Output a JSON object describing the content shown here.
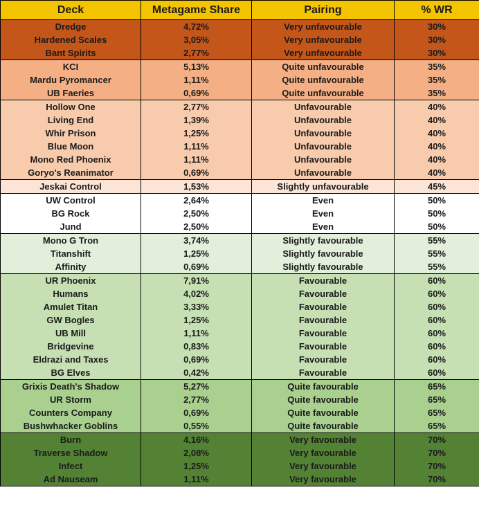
{
  "headers": [
    "Deck",
    "Metagame Share",
    "Pairing",
    "% WR"
  ],
  "groups": [
    {
      "color": "#c4561a",
      "rows": [
        [
          "Dredge",
          "4,72%",
          "Very unfavourable",
          "30%"
        ],
        [
          "Hardened Scales",
          "3,05%",
          "Very unfavourable",
          "30%"
        ],
        [
          "Bant Spirits",
          "2,77%",
          "Very unfavourable",
          "30%"
        ]
      ]
    },
    {
      "color": "#f4b084",
      "rows": [
        [
          "KCI",
          "5,13%",
          "Quite unfavourable",
          "35%"
        ],
        [
          "Mardu Pyromancer",
          "1,11%",
          "Quite unfavourable",
          "35%"
        ],
        [
          "UB Faeries",
          "0,69%",
          "Quite unfavourable",
          "35%"
        ]
      ]
    },
    {
      "color": "#f8cbad",
      "rows": [
        [
          "Hollow One",
          "2,77%",
          "Unfavourable",
          "40%"
        ],
        [
          "Living End",
          "1,39%",
          "Unfavourable",
          "40%"
        ],
        [
          "Whir Prison",
          "1,25%",
          "Unfavourable",
          "40%"
        ],
        [
          "Blue Moon",
          "1,11%",
          "Unfavourable",
          "40%"
        ],
        [
          "Mono Red Phoenix",
          "1,11%",
          "Unfavourable",
          "40%"
        ],
        [
          "Goryo's Reanimator",
          "0,69%",
          "Unfavourable",
          "40%"
        ]
      ]
    },
    {
      "color": "#fce4d6",
      "rows": [
        [
          "Jeskai Control",
          "1,53%",
          "Slightly unfavourable",
          "45%"
        ]
      ]
    },
    {
      "color": "#ffffff",
      "rows": [
        [
          "UW Control",
          "2,64%",
          "Even",
          "50%"
        ],
        [
          "BG Rock",
          "2,50%",
          "Even",
          "50%"
        ],
        [
          "Jund",
          "2,50%",
          "Even",
          "50%"
        ]
      ]
    },
    {
      "color": "#e2efda",
      "rows": [
        [
          "Mono G Tron",
          "3,74%",
          "Slightly favourable",
          "55%"
        ],
        [
          "Titanshift",
          "1,25%",
          "Slightly favourable",
          "55%"
        ],
        [
          "Affinity",
          "0,69%",
          "Slightly favourable",
          "55%"
        ]
      ]
    },
    {
      "color": "#c6e0b4",
      "rows": [
        [
          "UR Phoenix",
          "7,91%",
          "Favourable",
          "60%"
        ],
        [
          "Humans",
          "4,02%",
          "Favourable",
          "60%"
        ],
        [
          "Amulet Titan",
          "3,33%",
          "Favourable",
          "60%"
        ],
        [
          "GW Bogles",
          "1,25%",
          "Favourable",
          "60%"
        ],
        [
          "UB Mill",
          "1,11%",
          "Favourable",
          "60%"
        ],
        [
          "Bridgevine",
          "0,83%",
          "Favourable",
          "60%"
        ],
        [
          "Eldrazi and Taxes",
          "0,69%",
          "Favourable",
          "60%"
        ],
        [
          "BG Elves",
          "0,42%",
          "Favourable",
          "60%"
        ]
      ]
    },
    {
      "color": "#a9d08e",
      "rows": [
        [
          "Grixis Death's Shadow",
          "5,27%",
          "Quite favourable",
          "65%"
        ],
        [
          "UR Storm",
          "2,77%",
          "Quite favourable",
          "65%"
        ],
        [
          "Counters Company",
          "0,69%",
          "Quite favourable",
          "65%"
        ],
        [
          "Bushwhacker Goblins",
          "0,55%",
          "Quite favourable",
          "65%"
        ]
      ]
    },
    {
      "color": "#548235",
      "rows": [
        [
          "Burn",
          "4,16%",
          "Very favourable",
          "70%"
        ],
        [
          "Traverse Shadow",
          "2,08%",
          "Very favourable",
          "70%"
        ],
        [
          "Infect",
          "1,25%",
          "Very favourable",
          "70%"
        ],
        [
          "Ad Nauseam",
          "1,11%",
          "Very favourable",
          "70%"
        ]
      ]
    }
  ]
}
